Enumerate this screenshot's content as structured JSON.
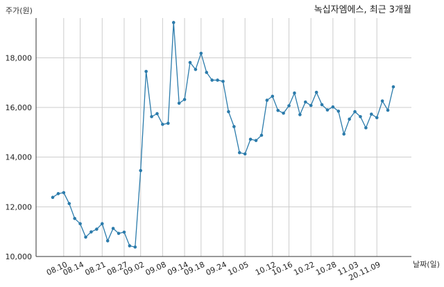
{
  "chart_data": {
    "type": "line",
    "title": "녹십자엠에스, 최근 3개월",
    "xlabel": "날짜(일)",
    "ylabel": "주가(원)",
    "ylim": [
      10000,
      19600
    ],
    "yticks": [
      10000,
      12000,
      14000,
      16000,
      18000
    ],
    "ytick_labels": [
      "10,000",
      "12,000",
      "14,000",
      "16,000",
      "18,000"
    ],
    "grid": true,
    "line_color": "#2b7bab",
    "xtick_labels": [
      "08.10",
      "08.14",
      "08.21",
      "08.27",
      "09.02",
      "09.08",
      "09.14",
      "09.18",
      "09.24",
      "10.05",
      "10.12",
      "10.16",
      "10.22",
      "10.28",
      "11.03",
      "20.11.09"
    ],
    "xtick_indices": [
      2,
      5,
      9,
      13,
      16,
      20,
      24,
      27,
      31,
      35,
      40,
      43,
      47,
      51,
      55,
      59
    ],
    "values": [
      12380,
      12530,
      12570,
      12130,
      11530,
      11320,
      10780,
      10990,
      11100,
      11320,
      10630,
      11130,
      10930,
      10980,
      10430,
      10380,
      13460,
      17450,
      15630,
      15750,
      15320,
      15360,
      19420,
      16170,
      16320,
      17810,
      17530,
      18180,
      17410,
      17100,
      17100,
      17050,
      15830,
      15230,
      14180,
      14130,
      14720,
      14670,
      14880,
      16290,
      16450,
      15880,
      15770,
      16070,
      16580,
      15710,
      16220,
      16080,
      16610,
      16110,
      15900,
      16020,
      15850,
      14930,
      15530,
      15830,
      15630,
      15180,
      15730,
      15590,
      16260,
      15890,
      16830
    ]
  }
}
